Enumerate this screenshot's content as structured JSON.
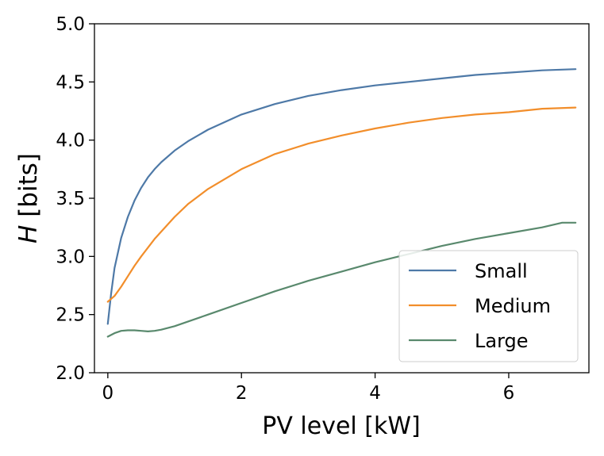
{
  "chart_data": {
    "type": "line",
    "title": "",
    "xlabel": "PV level [kW]",
    "ylabel_italic": "H",
    "ylabel_rest": " [bits]",
    "xlim": [
      -0.2,
      7.2
    ],
    "ylim": [
      2.0,
      5.0
    ],
    "x_ticks": [
      0,
      2,
      4,
      6
    ],
    "x_tick_labels": [
      "0",
      "2",
      "4",
      "6"
    ],
    "y_ticks": [
      2.0,
      2.5,
      3.0,
      3.5,
      4.0,
      4.5,
      5.0
    ],
    "y_tick_labels": [
      "2.0",
      "2.5",
      "3.0",
      "3.5",
      "4.0",
      "4.5",
      "5.0"
    ],
    "grid": false,
    "legend_position": "bottom-right",
    "series": [
      {
        "name": "Small",
        "color": "#4e79a7",
        "x": [
          0,
          0.05,
          0.1,
          0.2,
          0.3,
          0.4,
          0.5,
          0.6,
          0.7,
          0.8,
          1.0,
          1.2,
          1.5,
          2.0,
          2.5,
          3.0,
          3.5,
          4.0,
          4.5,
          5.0,
          5.5,
          6.0,
          6.5,
          7.0
        ],
        "values": [
          2.42,
          2.68,
          2.9,
          3.16,
          3.34,
          3.48,
          3.59,
          3.68,
          3.75,
          3.81,
          3.91,
          3.99,
          4.09,
          4.22,
          4.31,
          4.38,
          4.43,
          4.47,
          4.5,
          4.53,
          4.56,
          4.58,
          4.6,
          4.61
        ]
      },
      {
        "name": "Medium",
        "color": "#f28e2b",
        "x": [
          0,
          0.1,
          0.2,
          0.3,
          0.4,
          0.5,
          0.7,
          1.0,
          1.2,
          1.5,
          2.0,
          2.5,
          3.0,
          3.5,
          4.0,
          4.5,
          5.0,
          5.5,
          6.0,
          6.5,
          7.0
        ],
        "values": [
          2.61,
          2.66,
          2.74,
          2.83,
          2.92,
          3.0,
          3.15,
          3.34,
          3.45,
          3.58,
          3.75,
          3.88,
          3.97,
          4.04,
          4.1,
          4.15,
          4.19,
          4.22,
          4.24,
          4.27,
          4.28
        ]
      },
      {
        "name": "Large",
        "color": "#59896d",
        "x": [
          0,
          0.1,
          0.2,
          0.3,
          0.4,
          0.5,
          0.6,
          0.7,
          0.8,
          1.0,
          1.5,
          2.0,
          2.5,
          3.0,
          3.5,
          4.0,
          4.5,
          5.0,
          5.5,
          6.0,
          6.5,
          6.8,
          7.0
        ],
        "values": [
          2.31,
          2.34,
          2.36,
          2.365,
          2.365,
          2.36,
          2.355,
          2.36,
          2.37,
          2.4,
          2.5,
          2.6,
          2.7,
          2.79,
          2.87,
          2.95,
          3.02,
          3.09,
          3.15,
          3.2,
          3.25,
          3.29,
          3.29
        ]
      }
    ]
  }
}
